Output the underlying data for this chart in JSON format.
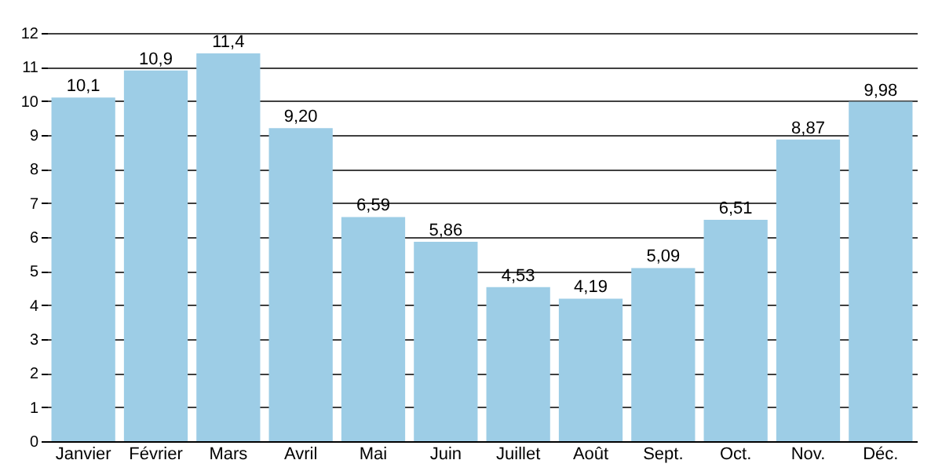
{
  "chart_data": {
    "type": "bar",
    "categories": [
      "Janvier",
      "Février",
      "Mars",
      "Avril",
      "Mai",
      "Juin",
      "Juillet",
      "Août",
      "Sept.",
      "Oct.",
      "Nov.",
      "Déc."
    ],
    "values": [
      10.1,
      10.9,
      11.4,
      9.2,
      6.59,
      5.86,
      4.53,
      4.19,
      5.09,
      6.51,
      8.87,
      9.98
    ],
    "value_labels": [
      "10,1",
      "10,9",
      "11,4",
      "9,20",
      "6,59",
      "5,86",
      "4,53",
      "4,19",
      "5,09",
      "6,51",
      "8,87",
      "9,98"
    ],
    "color": "#9dcde6",
    "ylim": [
      0,
      12
    ],
    "yticks": [
      0,
      1,
      2,
      3,
      4,
      5,
      6,
      7,
      8,
      9,
      10,
      11,
      12
    ],
    "grid": "y"
  }
}
